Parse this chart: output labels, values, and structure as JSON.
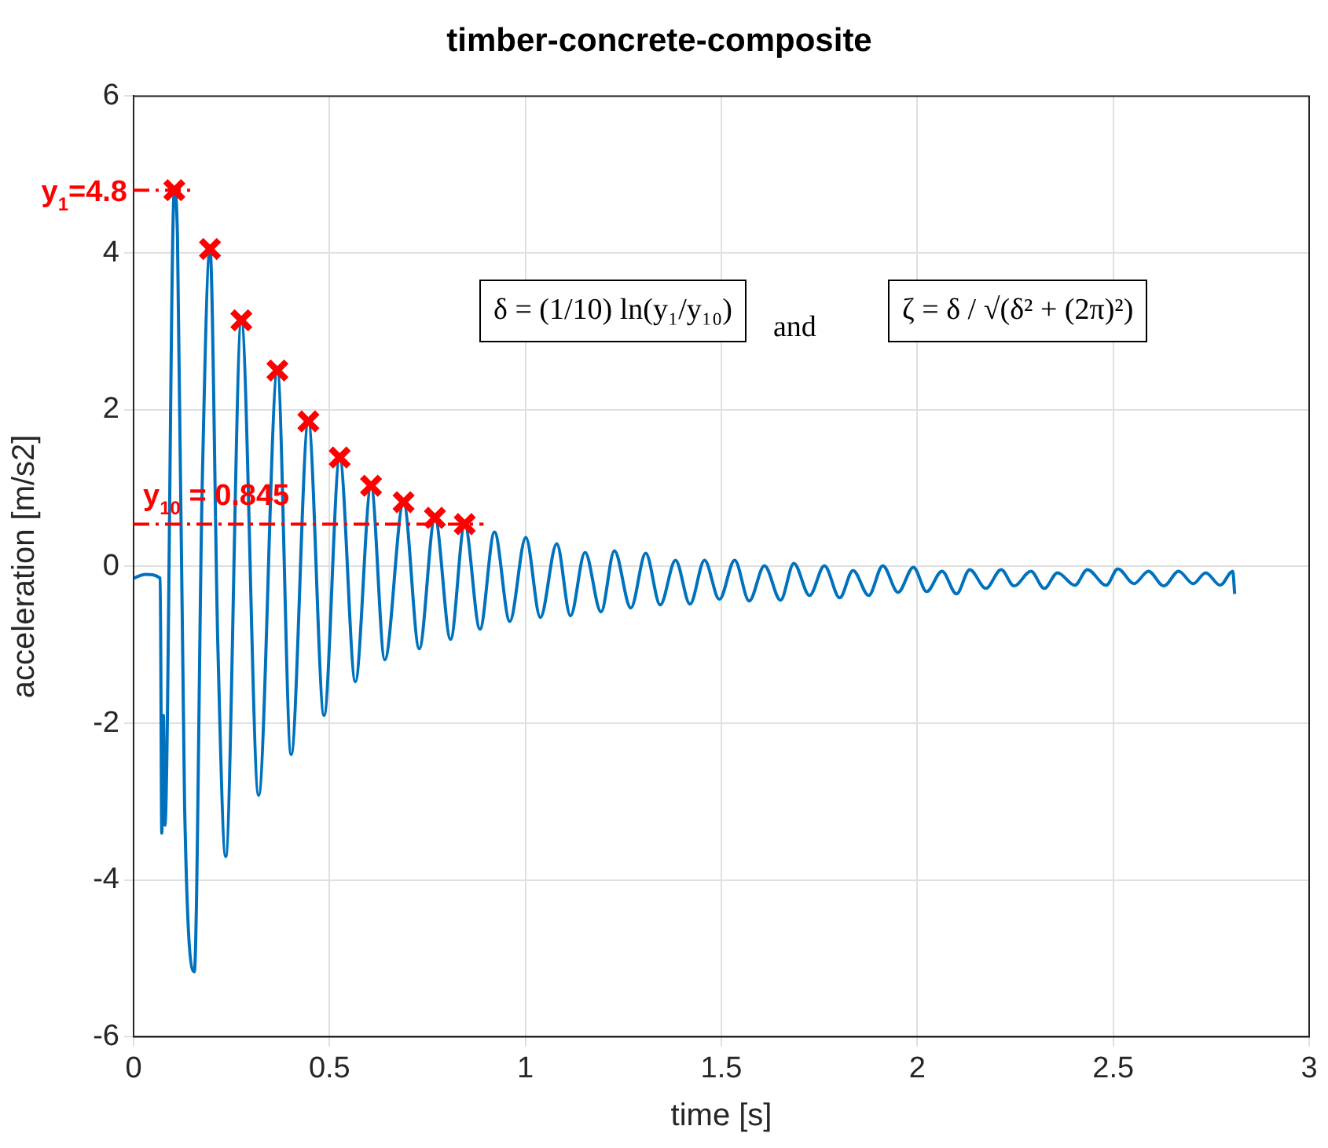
{
  "chart_data": {
    "type": "line",
    "title": "timber-concrete-composite",
    "xlabel": "time [s]",
    "ylabel": "acceleration [m/s2]",
    "xlim": [
      0,
      3
    ],
    "xticks": [
      0,
      0.5,
      1,
      1.5,
      2,
      2.5,
      3
    ],
    "ylim": [
      -6,
      6
    ],
    "yticks": [
      -6,
      -4,
      -2,
      0,
      2,
      4,
      6
    ],
    "grid": true,
    "legend": false,
    "annotations": [
      "δ = (1/10) ln(y₁/y₁₀)",
      "and",
      "ζ = δ / √(δ² + (2π)²)",
      "y$_{10}$ = 0.845"
    ],
    "ref_lines": [
      {
        "axis": "y",
        "value": 4.8,
        "label": "y$_{1}$=4.8",
        "color": "#ff0000",
        "line_style": "dashed"
      },
      {
        "axis": "y",
        "value": 0.54,
        "color": "#ff0000",
        "line_style": "dashed"
      }
    ],
    "series": [
      {
        "type": "line",
        "color": "#0072bd",
        "marker": "none",
        "x": [
          0,
          0.03,
          0.068,
          0.072,
          0.076,
          0.08,
          0.104,
          0.112,
          0.13,
          0.155,
          0.175,
          0.195,
          0.215,
          0.235,
          0.275,
          0.319,
          0.367,
          0.402,
          0.446,
          0.486,
          0.526,
          0.566,
          0.606,
          0.641,
          0.689,
          0.729,
          0.769,
          0.809,
          0.845,
          0.884,
          0.921,
          0.96,
          1.001,
          1.038,
          1.08,
          1.115,
          1.152,
          1.193,
          1.227,
          1.269,
          1.307,
          1.344,
          1.383,
          1.42,
          1.457,
          1.495,
          1.534,
          1.571,
          1.61,
          1.651,
          1.685,
          1.725,
          1.763,
          1.802,
          1.836,
          1.876,
          1.912,
          1.951,
          1.99,
          2.024,
          2.063,
          2.1,
          2.134,
          2.175,
          2.214,
          2.247,
          2.29,
          2.324,
          2.358,
          2.402,
          2.434,
          2.482,
          2.512,
          2.553,
          2.59,
          2.629,
          2.667,
          2.704,
          2.736,
          2.773,
          2.805,
          2.81
        ],
        "values": [
          -0.15,
          -0.1,
          -0.15,
          -3.4,
          -1.9,
          -3.3,
          4.8,
          4.2,
          -3,
          -5.17,
          1,
          4.05,
          -1,
          -3.7,
          3.14,
          -2.92,
          2.5,
          -2.4,
          1.85,
          -1.9,
          1.39,
          -1.47,
          1.03,
          -1.19,
          0.82,
          -1.05,
          0.62,
          -0.93,
          0.54,
          -0.8,
          0.44,
          -0.7,
          0.37,
          -0.65,
          0.29,
          -0.63,
          0.18,
          -0.58,
          0.2,
          -0.53,
          0.17,
          -0.49,
          0.08,
          -0.48,
          0.08,
          -0.42,
          0.08,
          -0.44,
          0.01,
          -0.43,
          0.04,
          -0.37,
          0.01,
          -0.4,
          -0.05,
          -0.37,
          0.01,
          -0.33,
          -0.01,
          -0.32,
          -0.06,
          -0.35,
          -0.04,
          -0.28,
          -0.04,
          -0.25,
          -0.06,
          -0.28,
          -0.08,
          -0.24,
          -0.04,
          -0.24,
          -0.03,
          -0.22,
          -0.06,
          -0.25,
          -0.06,
          -0.22,
          -0.08,
          -0.24,
          -0.06,
          -0.35
        ]
      },
      {
        "type": "scatter",
        "color": "#ff0000",
        "marker": "cross",
        "x": [
          0.104,
          0.195,
          0.275,
          0.367,
          0.446,
          0.526,
          0.606,
          0.689,
          0.769,
          0.845
        ],
        "values": [
          4.8,
          4.05,
          3.14,
          2.5,
          1.85,
          1.39,
          1.03,
          0.82,
          0.62,
          0.54
        ]
      }
    ]
  }
}
